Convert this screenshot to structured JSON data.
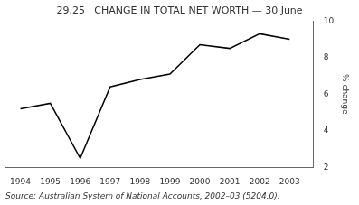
{
  "chart_data": {
    "type": "line",
    "title": "29.25   CHANGE IN TOTAL NET WORTH — 30 June",
    "ylabel": "% change",
    "annotations": [
      "Source: Australian System of National Accounts, 2002–03 (5204.0)."
    ],
    "x": [
      1994,
      1995,
      1996,
      1997,
      1998,
      1999,
      2000,
      2001,
      2002,
      2003
    ],
    "values": [
      5.2,
      5.5,
      2.5,
      6.4,
      6.8,
      7.1,
      8.7,
      8.5,
      9.3,
      9.0
    ],
    "color": "#000000",
    "xlim": [
      1993.5,
      2003.8
    ],
    "xticks": [
      1994,
      1995,
      1996,
      1997,
      1998,
      1999,
      2000,
      2001,
      2002,
      2003
    ],
    "ylim": [
      2,
      10
    ],
    "yticks": [
      2,
      4,
      6,
      8,
      10
    ],
    "grid": false
  }
}
